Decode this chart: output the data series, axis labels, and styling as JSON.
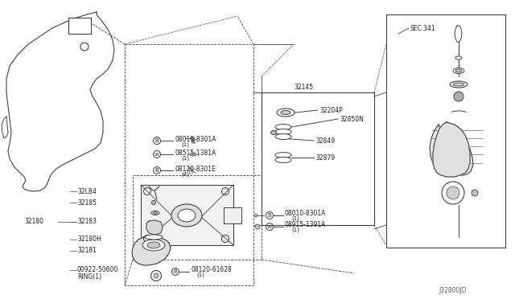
{
  "bg_color": "#ffffff",
  "line_color": "#404040",
  "text_color": "#202020",
  "labels": {
    "sec341": "SEC.341",
    "part_32145": "32145",
    "part_32204P": "32204P",
    "part_32850N": "32850N",
    "part_32849": "32849",
    "part_32879": "32879",
    "part_08010_8301A_1": "08010-8301A",
    "part_08010_8301A_1b": "(1)",
    "part_08515_1381A": "08515-1381A",
    "part_08515_1381A_b": "(1)",
    "part_08120_8301E": "08120-8301E",
    "part_08120_8301E_b": "(4)",
    "part_32LB4": "32LB4",
    "part_32185": "32185",
    "part_32180": "32180",
    "part_32183": "32183",
    "part_32180H": "32180H",
    "part_32181": "32181",
    "part_00922_50600": "00922-50600",
    "part_00922_50600_b": "RING(1)",
    "part_08120_61628": "08120-61628",
    "part_08120_61628_b": "(1)",
    "part_08010_8301A_2": "08010-8301A",
    "part_08010_8301A_2b": "(1)",
    "part_08915_1391A": "08915-1391A",
    "part_08915_1391A_b": "(1)",
    "diagram_code": "J32800JD"
  },
  "fs": 5.5,
  "fs_small": 5.0
}
